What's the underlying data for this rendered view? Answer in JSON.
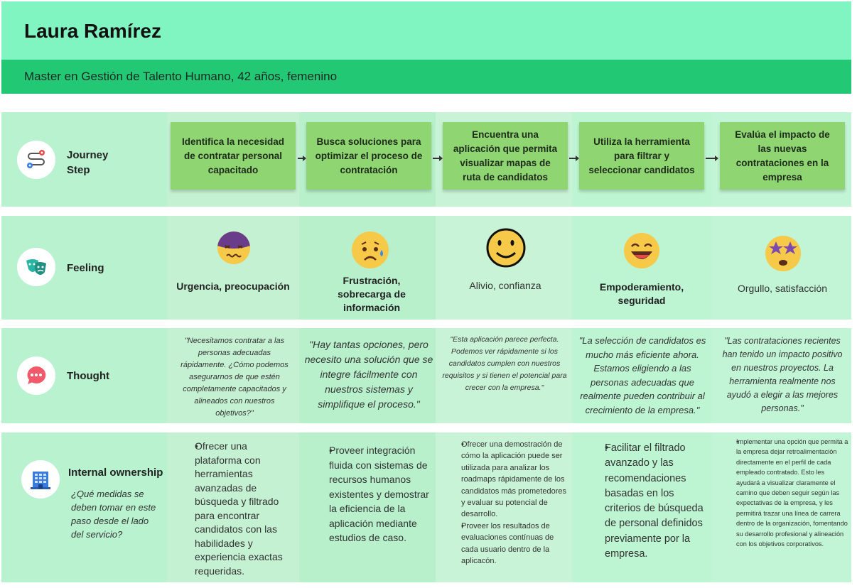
{
  "persona": {
    "name": "Laura Ramírez",
    "subtitle": "Master en Gestión de Talento Humano, 42 años, femenino"
  },
  "rows": {
    "journey": {
      "label_line1": "Journey",
      "label_line2": "Step",
      "icon": "route-map-icon"
    },
    "feeling": {
      "label": "Feeling",
      "icon": "theater-masks-icon"
    },
    "thought": {
      "label": "Thought",
      "icon": "speech-bubble-icon"
    },
    "owner": {
      "label": "Internal ownership",
      "question": "¿Qué medidas se deben tomar en este paso desde el lado del servicio?",
      "icon": "office-building-icon"
    }
  },
  "journey_steps": [
    "Identifica la necesidad de contratar personal capacitado",
    "Busca soluciones para optimizar el proceso de contratación",
    "Encuentra una aplicación que permita visualizar mapas de ruta de candidatos",
    "Utiliza la herramienta para filtrar y seleccionar candidatos",
    "Evalúa el impacto de las nuevas contrataciones en la empresa"
  ],
  "feelings": [
    {
      "label": "Urgencia, preocupación",
      "emoji": "anxious-face-icon"
    },
    {
      "label": "Frustración, sobrecarga de información",
      "emoji": "sad-tear-face-icon"
    },
    {
      "label": "Alivio, confianza",
      "emoji": "smiling-face-icon"
    },
    {
      "label": "Empoderamiento, seguridad",
      "emoji": "grinning-face-icon"
    },
    {
      "label": "Orgullo, satisfacción",
      "emoji": "star-eyes-face-icon"
    }
  ],
  "thoughts": [
    "\"Necesitamos contratar a las personas adecuadas rápidamente. ¿Cómo podemos asegurarnos de que estén completamente capacitados y alineados con nuestros objetivos?\"",
    "\"Hay tantas opciones, pero necesito una solución que se integre fácilmente con nuestros sistemas y simplifique el proceso.\"",
    "\"Esta aplicación parece perfecta. Podemos ver rápidamente si los candidatos cumplen con nuestros requisitos y si tienen el potencial para crecer con la empresa.\"",
    "\"La selección de candidatos es mucho más eficiente ahora. Estamos eligiendo a las personas adecuadas que realmente pueden contribuir al crecimiento de la empresa.\"",
    "\"Las contrataciones recientes han tenido un impacto positivo en nuestros proyectos. La herramienta realmente nos ayudó a elegir a las mejores personas.\""
  ],
  "ownership": [
    [
      "Ofrecer una plataforma con herramientas avanzadas de búsqueda y filtrado para encontrar candidatos con las habilidades y experiencia exactas requeridas."
    ],
    [
      "Proveer integración fluida con sistemas de recursos humanos existentes y demostrar la eficiencia de la aplicación mediante estudios de caso."
    ],
    [
      "Ofrecer una demostración de cómo la aplicación puede ser utilizada para analizar los roadmaps rápidamente de los candidatos más prometedores y evaluar su potencial de desarrollo.",
      "Proveer los resultados de evaluaciones contínuas de cada usuario dentro de la aplicacón."
    ],
    [
      "Facilitar el filtrado avanzado y las recomendaciones basadas en los criterios de búsqueda de personal definidos previamente por la empresa."
    ],
    [
      "Implementar una opción que permita a la empresa dejar retroalimentación directamente en el perfil de cada empleado contratado. Esto les ayudará a visualizar claramente el camino que deben seguir según las expectativas de la empresa, y les permitirá trazar una línea de carrera dentro de la organización, fomentando su desarrollo profesional y alineación con los objetivos corporativos."
    ]
  ]
}
